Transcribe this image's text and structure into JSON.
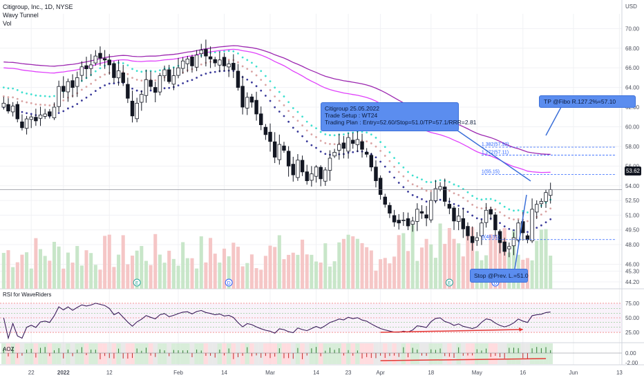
{
  "header": {
    "symbol_line": "Citigroup, Inc., 1D, NYSE",
    "indicator_1": "Wavy Tunnel",
    "indicator_2": "Vol",
    "currency": "USD"
  },
  "last_price_tag": "53.62",
  "callouts": {
    "trade_line1": "Citigroup 25.05.2022",
    "trade_line2": "Trade Setup : WT24",
    "trade_line3": "Trading Plan : Entry=52.60/Stop=51.0/TP=57.1/RRR=2.81",
    "take_profit": "TP @Fibo R.127.2%=57.10",
    "stop": "Stop @Prev. L.=51.0"
  },
  "rsi": {
    "title": "RSI for WaveRiders"
  },
  "aoz": {
    "title": "AOZ"
  },
  "colors": {
    "up": "#26a69a",
    "down": "#131722",
    "vol_up": "#c8e6c9",
    "vol_down": "#f5c6c6",
    "tunnel_top": "#40e0d0",
    "tunnel_mid": "#d9a3a3",
    "tunnel_bottom": "#3a3a9a",
    "ma_slow": "#9c27b0",
    "ma_fast": "#e040fb",
    "callout": "#5b8def",
    "arrow": "#e53935"
  },
  "chart_data": {
    "type": "candlestick",
    "ylim": [
      43.5,
      71.5
    ],
    "y_ticks": [
      "70.00",
      "68.00",
      "66.00",
      "64.00",
      "62.00",
      "60.00",
      "58.00",
      "56.00",
      "54.00",
      "52.50",
      "51.00",
      "49.50",
      "48.00",
      "46.00",
      "45.30",
      "44.20"
    ],
    "x_ticks": [
      {
        "label": "22",
        "bar": 6
      },
      {
        "label": "2022",
        "bar": 13
      },
      {
        "label": "12",
        "bar": 23
      },
      {
        "label": "Feb",
        "bar": 38
      },
      {
        "label": "14",
        "bar": 48
      },
      {
        "label": "Mar",
        "bar": 58
      },
      {
        "label": "14",
        "bar": 68
      },
      {
        "label": "23",
        "bar": 75
      },
      {
        "label": "Apr",
        "bar": 82
      },
      {
        "label": "18",
        "bar": 93
      },
      {
        "label": "May",
        "bar": 103
      },
      {
        "label": "16",
        "bar": 113
      },
      {
        "label": "Jun",
        "bar": 124
      },
      {
        "label": "13",
        "bar": 134
      }
    ],
    "series_close": [
      62.4,
      61.6,
      62.1,
      60.8,
      59.9,
      60.8,
      61.0,
      60.6,
      61.2,
      61.3,
      61.1,
      62.0,
      64.1,
      63.6,
      64.6,
      64.0,
      65.0,
      66.1,
      65.9,
      66.3,
      67.2,
      67.0,
      66.8,
      66.3,
      65.0,
      65.7,
      64.5,
      62.9,
      61.1,
      62.4,
      63.3,
      64.8,
      64.1,
      63.5,
      65.2,
      65.8,
      64.6,
      65.2,
      66.0,
      66.7,
      66.9,
      66.2,
      67.3,
      67.8,
      67.2,
      66.9,
      66.5,
      66.8,
      66.2,
      66.4,
      65.8,
      64.0,
      62.0,
      63.0,
      62.5,
      61.3,
      60.2,
      59.2,
      58.5,
      56.9,
      58.2,
      57.6,
      56.0,
      55.1,
      56.6,
      55.4,
      54.5,
      55.2,
      55.9,
      54.7,
      55.6,
      56.8,
      57.4,
      58.2,
      57.8,
      58.9,
      58.3,
      58.7,
      57.7,
      57.2,
      55.9,
      54.5,
      53.1,
      52.1,
      51.2,
      50.3,
      50.2,
      50.5,
      49.9,
      50.4,
      51.6,
      51.2,
      50.7,
      52.5,
      53.7,
      53.9,
      52.4,
      51.7,
      50.4,
      50.9,
      49.6,
      48.9,
      48.2,
      48.7,
      50.2,
      51.5,
      51.1,
      49.5,
      48.2,
      47.3,
      47.8,
      48.7,
      50.2,
      49.2,
      48.5,
      51.6,
      52.1,
      52.4,
      53.3,
      53.6
    ],
    "stop": 51.0,
    "entry": 52.6,
    "take_profit": 57.1,
    "fib_levels": [
      {
        "label": "1.382(57.92)",
        "value": 57.92
      },
      {
        "label": "1.272(57.11)",
        "value": 57.11
      },
      {
        "label": "1(55.15)",
        "value": 55.15
      },
      {
        "label": "0(48.51)",
        "value": 48.51
      }
    ],
    "rsi_levels": [
      75.0,
      50.0,
      25.0
    ],
    "aoz_levels": [
      0.0,
      -2.0
    ],
    "earnings_markers": [
      {
        "label": "E",
        "bar": 29
      },
      {
        "label": "D",
        "bar": 49
      },
      {
        "label": "E",
        "bar": 97
      },
      {
        "label": "D",
        "bar": 107
      }
    ]
  }
}
